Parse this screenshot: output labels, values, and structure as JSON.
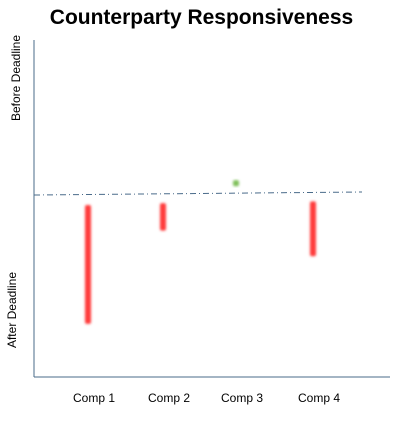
{
  "chart_data": {
    "type": "range-bar",
    "title": "Counterparty Responsiveness",
    "ylabel_top": "Before Deadline",
    "ylabel_bottom": "After Deadline",
    "categories": [
      "Comp 1",
      "Comp 2",
      "Comp 3",
      "Comp 4"
    ],
    "ylim": [
      -1,
      1
    ],
    "reference_line": 0,
    "ranges": [
      {
        "category": "Comp 1",
        "low": -0.71,
        "high": -0.06,
        "status": "late"
      },
      {
        "category": "Comp 2",
        "low": -0.2,
        "high": -0.05,
        "status": "late"
      },
      {
        "category": "Comp 3",
        "low": 0.05,
        "high": 0.09,
        "status": "early"
      },
      {
        "category": "Comp 4",
        "low": -0.34,
        "high": -0.04,
        "status": "late"
      }
    ],
    "colors": {
      "late": "#ff3b3b",
      "early": "#7fbf5a",
      "axis": "#4a6b8a",
      "reference": "#4a6b8a"
    }
  }
}
